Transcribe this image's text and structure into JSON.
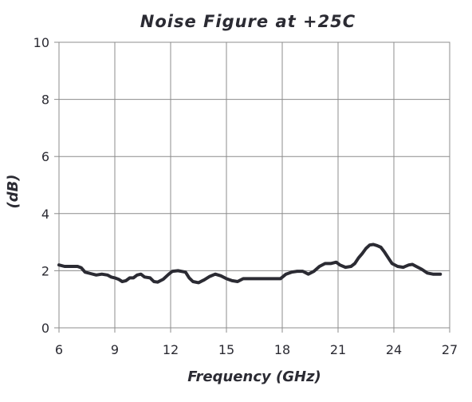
{
  "chart_data": {
    "type": "line",
    "title": "Noise Figure at +25C",
    "xlabel": "Frequency (GHz)",
    "ylabel": "(dB)",
    "xlim": [
      6,
      27
    ],
    "ylim": [
      0,
      10
    ],
    "x_ticks": [
      "6",
      "9",
      "12",
      "15",
      "18",
      "21",
      "24",
      "27"
    ],
    "y_ticks": [
      "0",
      "2",
      "4",
      "6",
      "8",
      "10"
    ],
    "grid": true,
    "legend": "none",
    "series": [
      {
        "color": "#2b2b33",
        "x": [
          6.0,
          6.3,
          6.7,
          7.0,
          7.2,
          7.4,
          7.7,
          8.0,
          8.3,
          8.6,
          8.8,
          9.0,
          9.2,
          9.4,
          9.6,
          9.8,
          10.0,
          10.2,
          10.4,
          10.6,
          10.9,
          11.1,
          11.3,
          11.6,
          11.9,
          12.1,
          12.4,
          12.8,
          13.0,
          13.2,
          13.5,
          13.8,
          14.1,
          14.4,
          14.7,
          15.0,
          15.3,
          15.6,
          15.9,
          16.2,
          16.6,
          17.0,
          17.5,
          17.9,
          18.2,
          18.5,
          18.8,
          19.1,
          19.4,
          19.7,
          20.0,
          20.3,
          20.6,
          20.9,
          21.1,
          21.4,
          21.7,
          21.9,
          22.1,
          22.3,
          22.5,
          22.7,
          22.9,
          23.1,
          23.3,
          23.5,
          23.7,
          23.9,
          24.2,
          24.5,
          24.8,
          25.0,
          25.2,
          25.5,
          25.8,
          26.1,
          26.5
        ],
        "y": [
          2.2,
          2.15,
          2.15,
          2.15,
          2.1,
          1.95,
          1.9,
          1.85,
          1.88,
          1.85,
          1.78,
          1.75,
          1.7,
          1.62,
          1.65,
          1.75,
          1.75,
          1.85,
          1.88,
          1.78,
          1.75,
          1.62,
          1.6,
          1.7,
          1.88,
          1.98,
          2.0,
          1.95,
          1.75,
          1.62,
          1.58,
          1.68,
          1.8,
          1.88,
          1.82,
          1.72,
          1.65,
          1.62,
          1.72,
          1.72,
          1.72,
          1.72,
          1.72,
          1.72,
          1.88,
          1.95,
          1.98,
          1.98,
          1.88,
          1.98,
          2.15,
          2.25,
          2.25,
          2.3,
          2.2,
          2.12,
          2.15,
          2.25,
          2.45,
          2.6,
          2.78,
          2.9,
          2.92,
          2.88,
          2.82,
          2.65,
          2.45,
          2.25,
          2.15,
          2.12,
          2.2,
          2.22,
          2.15,
          2.05,
          1.92,
          1.88,
          1.88
        ]
      }
    ]
  }
}
